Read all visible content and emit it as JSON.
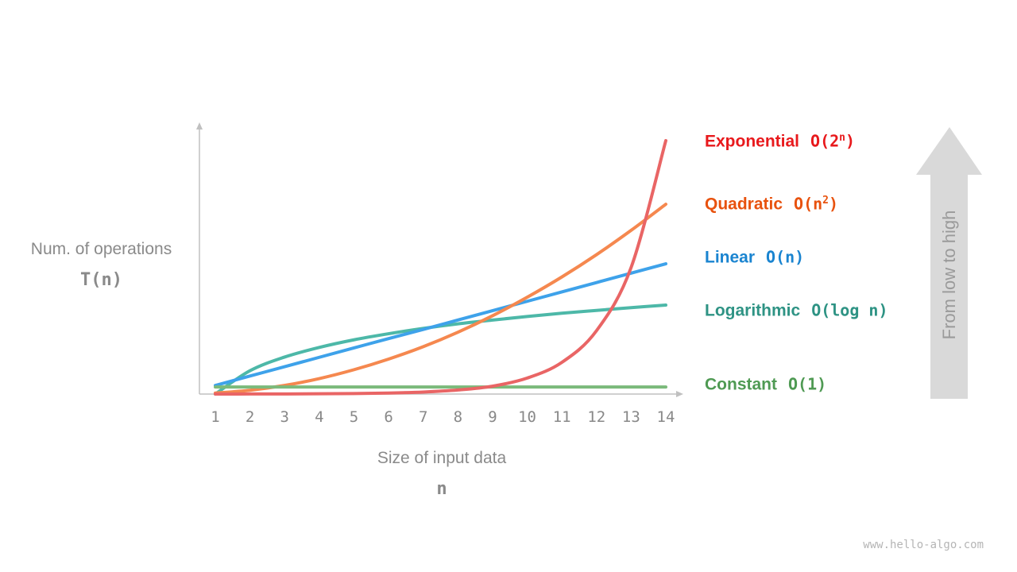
{
  "chart_data": {
    "type": "line",
    "xlabel": "Size of input data",
    "xlabel_symbol": "n",
    "ylabel": "Num. of operations",
    "ylabel_symbol": "T(n)",
    "x": [
      1,
      2,
      3,
      4,
      5,
      6,
      7,
      8,
      9,
      10,
      11,
      12,
      13,
      14
    ],
    "x_tick_labels": [
      "1",
      "2",
      "3",
      "4",
      "5",
      "6",
      "7",
      "8",
      "9",
      "10",
      "11",
      "12",
      "13",
      "14"
    ],
    "y_ticks": "none",
    "grid": false,
    "series": [
      {
        "name": "Exponential",
        "notation": "O(2",
        "sup": "n",
        "close": ")",
        "label_color": "#e8191c",
        "color": "#e96565",
        "values": [
          0.01,
          0.02,
          0.05,
          0.1,
          0.2,
          0.4,
          0.8,
          1.6,
          3.1,
          6.3,
          12.5,
          25,
          50,
          100
        ]
      },
      {
        "name": "Quadratic",
        "notation": "O(n",
        "sup": "2",
        "close": ")",
        "label_color": "#e8520e",
        "color": "#f5884f",
        "values": [
          0.4,
          1.5,
          3.4,
          6.1,
          9.6,
          13.8,
          18.7,
          24.4,
          30.9,
          38.2,
          46.2,
          55.0,
          64.6,
          74.9
        ]
      },
      {
        "name": "Linear",
        "notation": "O(n)",
        "sup": "",
        "close": "",
        "label_color": "#1a84d0",
        "color": "#3ea2ea",
        "values": [
          3.4,
          7.1,
          10.8,
          14.5,
          18.2,
          21.9,
          25.5,
          29.2,
          32.9,
          36.6,
          40.3,
          44.0,
          47.7,
          51.4
        ]
      },
      {
        "name": "Logarithmic",
        "notation": "O(log n)",
        "sup": "",
        "close": "",
        "label_color": "#2e9384",
        "color": "#4db8a8",
        "values": [
          0,
          9.2,
          14.6,
          18.4,
          21.4,
          23.8,
          25.9,
          27.7,
          29.2,
          30.6,
          31.9,
          33.0,
          34.1,
          35.1
        ]
      },
      {
        "name": "Constant",
        "notation": "O(1)",
        "sup": "",
        "close": "",
        "label_color": "#4f9a53",
        "color": "#7bba7b",
        "values": [
          2.8,
          2.8,
          2.8,
          2.8,
          2.8,
          2.8,
          2.8,
          2.8,
          2.8,
          2.8,
          2.8,
          2.8,
          2.8,
          2.8
        ]
      }
    ],
    "ylim": [
      0,
      100
    ],
    "annotation": "From  low to high",
    "axis_color": "#c0c0c0",
    "arrow_color": "#d9d9d9"
  },
  "watermark": "www.hello-algo.com"
}
